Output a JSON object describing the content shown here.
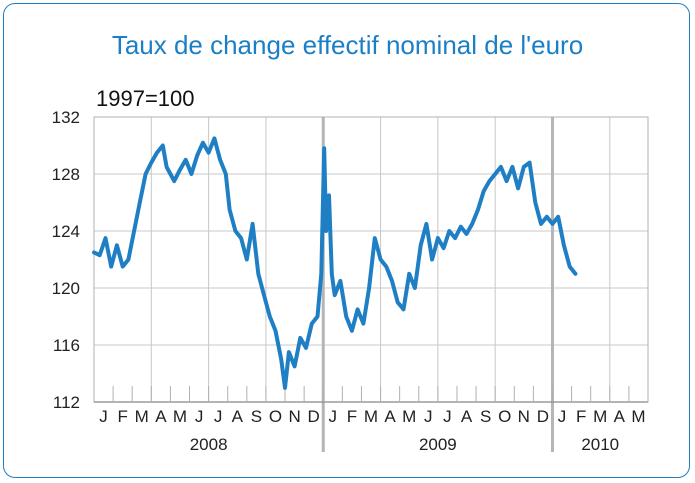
{
  "chart_data": {
    "type": "line",
    "title": "Taux de change effectif nominal de l'euro",
    "unit_label": "1997=100",
    "ylim": [
      112,
      132
    ],
    "yticks": [
      112,
      116,
      120,
      124,
      128,
      132
    ],
    "month_labels": [
      "J",
      "F",
      "M",
      "A",
      "M",
      "J",
      "J",
      "A",
      "S",
      "O",
      "N",
      "D",
      "J",
      "F",
      "M",
      "A",
      "M",
      "J",
      "J",
      "A",
      "S",
      "O",
      "N",
      "D",
      "J",
      "F",
      "M",
      "A",
      "M"
    ],
    "year_labels": [
      {
        "label": "2008",
        "first_month": 0,
        "months": 12
      },
      {
        "label": "2009",
        "first_month": 12,
        "months": 12
      },
      {
        "label": "2010",
        "first_month": 24,
        "months": 5
      }
    ],
    "grid": true,
    "line_color": "#1f7fc4",
    "series": [
      {
        "values_monthly_index": [
          [
            0,
            122.5
          ],
          [
            0.3,
            122.3
          ],
          [
            0.6,
            123.5
          ],
          [
            0.9,
            121.5
          ],
          [
            1.2,
            123.0
          ],
          [
            1.5,
            121.5
          ],
          [
            1.8,
            122.0
          ],
          [
            2.1,
            124.0
          ],
          [
            2.4,
            126.0
          ],
          [
            2.7,
            128.0
          ],
          [
            3.0,
            128.8
          ],
          [
            3.3,
            129.5
          ],
          [
            3.6,
            130.0
          ],
          [
            3.8,
            128.5
          ],
          [
            4.0,
            128.0
          ],
          [
            4.2,
            127.5
          ],
          [
            4.5,
            128.3
          ],
          [
            4.8,
            129.0
          ],
          [
            5.1,
            128.0
          ],
          [
            5.4,
            129.3
          ],
          [
            5.7,
            130.2
          ],
          [
            6.0,
            129.5
          ],
          [
            6.3,
            130.5
          ],
          [
            6.6,
            129.0
          ],
          [
            6.9,
            128.0
          ],
          [
            7.1,
            125.5
          ],
          [
            7.4,
            124.0
          ],
          [
            7.7,
            123.5
          ],
          [
            8.0,
            122.0
          ],
          [
            8.3,
            124.5
          ],
          [
            8.6,
            121.0
          ],
          [
            8.9,
            119.5
          ],
          [
            9.2,
            118.0
          ],
          [
            9.5,
            117.0
          ],
          [
            9.8,
            115.0
          ],
          [
            10.0,
            113.0
          ],
          [
            10.2,
            115.5
          ],
          [
            10.5,
            114.5
          ],
          [
            10.8,
            116.5
          ],
          [
            11.1,
            115.8
          ],
          [
            11.4,
            117.5
          ],
          [
            11.7,
            118.0
          ],
          [
            11.9,
            121.0
          ],
          [
            12.05,
            129.8
          ],
          [
            12.15,
            124.0
          ],
          [
            12.3,
            126.5
          ],
          [
            12.45,
            121.0
          ],
          [
            12.6,
            119.5
          ],
          [
            12.9,
            120.5
          ],
          [
            13.2,
            118.0
          ],
          [
            13.5,
            117.0
          ],
          [
            13.8,
            118.5
          ],
          [
            14.1,
            117.5
          ],
          [
            14.4,
            120.0
          ],
          [
            14.7,
            123.5
          ],
          [
            15.0,
            122.0
          ],
          [
            15.3,
            121.5
          ],
          [
            15.6,
            120.5
          ],
          [
            15.9,
            119.0
          ],
          [
            16.2,
            118.5
          ],
          [
            16.5,
            121.0
          ],
          [
            16.8,
            120.0
          ],
          [
            17.1,
            123.0
          ],
          [
            17.4,
            124.5
          ],
          [
            17.7,
            122.0
          ],
          [
            18.0,
            123.5
          ],
          [
            18.3,
            122.8
          ],
          [
            18.6,
            124.0
          ],
          [
            18.9,
            123.5
          ],
          [
            19.2,
            124.3
          ],
          [
            19.5,
            123.8
          ],
          [
            19.8,
            124.5
          ],
          [
            20.1,
            125.5
          ],
          [
            20.4,
            126.8
          ],
          [
            20.7,
            127.5
          ],
          [
            21.0,
            128.0
          ],
          [
            21.3,
            128.5
          ],
          [
            21.6,
            127.5
          ],
          [
            21.9,
            128.5
          ],
          [
            22.2,
            127.0
          ],
          [
            22.5,
            128.5
          ],
          [
            22.8,
            128.8
          ],
          [
            23.1,
            126.0
          ],
          [
            23.4,
            124.5
          ],
          [
            23.7,
            125.0
          ],
          [
            24.0,
            124.5
          ],
          [
            24.3,
            125.0
          ],
          [
            24.6,
            123.0
          ],
          [
            24.9,
            121.5
          ],
          [
            25.2,
            121.0
          ]
        ]
      }
    ]
  }
}
